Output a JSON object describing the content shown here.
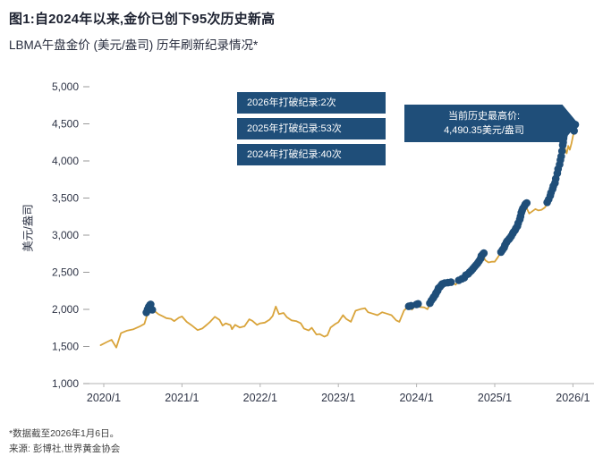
{
  "theme": {
    "navy": "#1F4E79",
    "gold": "#D9A43B"
  },
  "header": {
    "title": "图1:自2024年以来,金价已创下95次历史新高",
    "subtitle": "LBMA午盘金价 (美元/盎司) 历年刷新纪录情况*"
  },
  "legend": {
    "items": [
      {
        "label": "2026年打破纪录:2次"
      },
      {
        "label": "2025年打破纪录:53次"
      },
      {
        "label": "2024年打破纪录:40次"
      }
    ]
  },
  "callout": {
    "line1": "当前历史最高价:",
    "line2": "4,490.35美元/盎司"
  },
  "footer": {
    "note": "*数据截至2026年1月6日。",
    "source": "来源: 彭博社,世界黄金协会"
  },
  "chart_data": {
    "type": "line",
    "title": "LBMA午盘金价 (美元/盎司) 历年刷新纪录情况",
    "ylabel": "美元/盎司",
    "xlabel": "",
    "ylim": [
      1000,
      5000
    ],
    "yticks": [
      5000,
      4500,
      4000,
      3500,
      3000,
      2500,
      2000,
      1500,
      1000
    ],
    "ytick_labels": [
      "5,000",
      "4,500",
      "4,000",
      "3,500",
      "3,000",
      "2,500",
      "2,000",
      "1,500",
      "1,000"
    ],
    "xticks": [
      2020,
      2021,
      2022,
      2023,
      2024,
      2025,
      2026
    ],
    "xtick_labels": [
      "2020/1",
      "2021/1",
      "2022/1",
      "2023/1",
      "2024/1",
      "2025/1",
      "2026/1"
    ],
    "grid": false,
    "legend_position": "upper-center-overlay",
    "record_color": "#1F4E79",
    "current_record_high_usd": "4,490.35",
    "record_counts": {
      "2024": 40,
      "2025": 53,
      "2026": 2,
      "total_since_2024": 95
    },
    "series": [
      {
        "name": "LBMA午盘金价(美元/盎司)",
        "color": "#D9A43B",
        "points": [
          [
            2019.96,
            1517
          ],
          [
            2020.04,
            1560
          ],
          [
            2020.1,
            1590
          ],
          [
            2020.16,
            1485
          ],
          [
            2020.22,
            1680
          ],
          [
            2020.3,
            1715
          ],
          [
            2020.38,
            1732
          ],
          [
            2020.46,
            1770
          ],
          [
            2020.52,
            1805
          ],
          [
            2020.56,
            1945
          ],
          [
            2020.6,
            2063
          ],
          [
            2020.64,
            1985
          ],
          [
            2020.7,
            1935
          ],
          [
            2020.76,
            1905
          ],
          [
            2020.8,
            1882
          ],
          [
            2020.86,
            1872
          ],
          [
            2020.9,
            1842
          ],
          [
            2020.96,
            1888
          ],
          [
            2021.0,
            1905
          ],
          [
            2021.06,
            1833
          ],
          [
            2021.12,
            1788
          ],
          [
            2021.2,
            1720
          ],
          [
            2021.26,
            1742
          ],
          [
            2021.32,
            1795
          ],
          [
            2021.36,
            1832
          ],
          [
            2021.42,
            1900
          ],
          [
            2021.48,
            1858
          ],
          [
            2021.52,
            1782
          ],
          [
            2021.56,
            1812
          ],
          [
            2021.62,
            1788
          ],
          [
            2021.64,
            1732
          ],
          [
            2021.68,
            1792
          ],
          [
            2021.74,
            1755
          ],
          [
            2021.8,
            1772
          ],
          [
            2021.86,
            1866
          ],
          [
            2021.9,
            1846
          ],
          [
            2021.96,
            1792
          ],
          [
            2022.0,
            1812
          ],
          [
            2022.06,
            1822
          ],
          [
            2022.12,
            1862
          ],
          [
            2022.16,
            1912
          ],
          [
            2022.2,
            2039
          ],
          [
            2022.24,
            1936
          ],
          [
            2022.3,
            1952
          ],
          [
            2022.34,
            1896
          ],
          [
            2022.4,
            1852
          ],
          [
            2022.46,
            1842
          ],
          [
            2022.52,
            1812
          ],
          [
            2022.56,
            1742
          ],
          [
            2022.62,
            1716
          ],
          [
            2022.66,
            1752
          ],
          [
            2022.72,
            1662
          ],
          [
            2022.76,
            1668
          ],
          [
            2022.82,
            1632
          ],
          [
            2022.86,
            1652
          ],
          [
            2022.9,
            1756
          ],
          [
            2022.96,
            1802
          ],
          [
            2023.0,
            1826
          ],
          [
            2023.06,
            1922
          ],
          [
            2023.1,
            1872
          ],
          [
            2023.16,
            1832
          ],
          [
            2023.22,
            1982
          ],
          [
            2023.28,
            2002
          ],
          [
            2023.34,
            2016
          ],
          [
            2023.38,
            1962
          ],
          [
            2023.44,
            1942
          ],
          [
            2023.5,
            1922
          ],
          [
            2023.56,
            1962
          ],
          [
            2023.62,
            1942
          ],
          [
            2023.68,
            1922
          ],
          [
            2023.74,
            1852
          ],
          [
            2023.78,
            1832
          ],
          [
            2023.84,
            1986
          ],
          [
            2023.9,
            2041
          ],
          [
            2023.94,
            1996
          ],
          [
            2024.0,
            2066
          ],
          [
            2024.04,
            2032
          ],
          [
            2024.1,
            2026
          ],
          [
            2024.14,
            2002
          ],
          [
            2024.18,
            2086
          ],
          [
            2024.22,
            2166
          ],
          [
            2024.26,
            2202
          ],
          [
            2024.3,
            2302
          ],
          [
            2024.34,
            2342
          ],
          [
            2024.4,
            2332
          ],
          [
            2024.46,
            2362
          ],
          [
            2024.5,
            2332
          ],
          [
            2024.54,
            2392
          ],
          [
            2024.6,
            2402
          ],
          [
            2024.64,
            2472
          ],
          [
            2024.7,
            2502
          ],
          [
            2024.74,
            2572
          ],
          [
            2024.8,
            2652
          ],
          [
            2024.84,
            2746
          ],
          [
            2024.88,
            2662
          ],
          [
            2024.92,
            2632
          ],
          [
            2024.96,
            2642
          ],
          [
            2025.0,
            2642
          ],
          [
            2025.04,
            2702
          ],
          [
            2025.08,
            2772
          ],
          [
            2025.12,
            2862
          ],
          [
            2025.16,
            2922
          ],
          [
            2025.2,
            2942
          ],
          [
            2025.24,
            3022
          ],
          [
            2025.28,
            3082
          ],
          [
            2025.32,
            3232
          ],
          [
            2025.34,
            3322
          ],
          [
            2025.36,
            3242
          ],
          [
            2025.4,
            3382
          ],
          [
            2025.44,
            3292
          ],
          [
            2025.48,
            3322
          ],
          [
            2025.52,
            3352
          ],
          [
            2025.56,
            3332
          ],
          [
            2025.6,
            3342
          ],
          [
            2025.64,
            3372
          ],
          [
            2025.68,
            3432
          ],
          [
            2025.72,
            3552
          ],
          [
            2025.76,
            3682
          ],
          [
            2025.8,
            3862
          ],
          [
            2025.84,
            4022
          ],
          [
            2025.86,
            4202
          ],
          [
            2025.88,
            4342
          ],
          [
            2025.9,
            4152
          ],
          [
            2025.92,
            4102
          ],
          [
            2025.94,
            4202
          ],
          [
            2025.96,
            4152
          ],
          [
            2025.98,
            4232
          ],
          [
            2026.0,
            4332
          ],
          [
            2026.02,
            4406
          ],
          [
            2026.03,
            4490
          ]
        ]
      }
    ],
    "records": [
      {
        "label": "2020",
        "points": [
          [
            2020.545,
            1958
          ],
          [
            2020.56,
            1998
          ],
          [
            2020.575,
            2036
          ],
          [
            2020.59,
            2058
          ],
          [
            2020.6,
            2067
          ],
          [
            2020.62,
            1994
          ]
        ]
      },
      {
        "label": "2023",
        "points": [
          [
            2023.9,
            2041
          ],
          [
            2023.93,
            2050
          ]
        ]
      },
      {
        "label": "2024",
        "points": [
          [
            2024.0,
            2068
          ],
          [
            2024.02,
            2075
          ],
          [
            2024.17,
            2083
          ],
          [
            2024.19,
            2120
          ],
          [
            2024.21,
            2150
          ],
          [
            2024.22,
            2166
          ],
          [
            2024.24,
            2196
          ],
          [
            2024.25,
            2222
          ],
          [
            2024.27,
            2252
          ],
          [
            2024.28,
            2286
          ],
          [
            2024.3,
            2304
          ],
          [
            2024.32,
            2330
          ],
          [
            2024.33,
            2342
          ],
          [
            2024.36,
            2356
          ],
          [
            2024.4,
            2360
          ],
          [
            2024.44,
            2366
          ],
          [
            2024.54,
            2392
          ],
          [
            2024.58,
            2412
          ],
          [
            2024.61,
            2426
          ],
          [
            2024.63,
            2462
          ],
          [
            2024.66,
            2478
          ],
          [
            2024.68,
            2502
          ],
          [
            2024.7,
            2522
          ],
          [
            2024.72,
            2546
          ],
          [
            2024.74,
            2572
          ],
          [
            2024.76,
            2596
          ],
          [
            2024.78,
            2622
          ],
          [
            2024.8,
            2652
          ],
          [
            2024.82,
            2686
          ],
          [
            2024.83,
            2722
          ],
          [
            2024.85,
            2746
          ],
          [
            2024.86,
            2758
          ]
        ]
      },
      {
        "label": "2025",
        "points": [
          [
            2025.08,
            2772
          ],
          [
            2025.1,
            2802
          ],
          [
            2025.12,
            2832
          ],
          [
            2025.13,
            2866
          ],
          [
            2025.15,
            2902
          ],
          [
            2025.16,
            2922
          ],
          [
            2025.18,
            2942
          ],
          [
            2025.19,
            2956
          ],
          [
            2025.21,
            2986
          ],
          [
            2025.23,
            3022
          ],
          [
            2025.24,
            3042
          ],
          [
            2025.26,
            3066
          ],
          [
            2025.27,
            3092
          ],
          [
            2025.29,
            3122
          ],
          [
            2025.3,
            3162
          ],
          [
            2025.32,
            3212
          ],
          [
            2025.33,
            3252
          ],
          [
            2025.34,
            3302
          ],
          [
            2025.35,
            3332
          ],
          [
            2025.36,
            3362
          ],
          [
            2025.38,
            3392
          ],
          [
            2025.39,
            3416
          ],
          [
            2025.4,
            3426
          ],
          [
            2025.41,
            3434
          ],
          [
            2025.67,
            3442
          ],
          [
            2025.69,
            3482
          ],
          [
            2025.71,
            3532
          ],
          [
            2025.72,
            3572
          ],
          [
            2025.74,
            3622
          ],
          [
            2025.75,
            3662
          ],
          [
            2025.77,
            3702
          ],
          [
            2025.78,
            3762
          ],
          [
            2025.8,
            3832
          ],
          [
            2025.81,
            3892
          ],
          [
            2025.83,
            3952
          ],
          [
            2025.84,
            4012
          ],
          [
            2025.85,
            4062
          ],
          [
            2025.86,
            4132
          ],
          [
            2025.87,
            4212
          ],
          [
            2025.875,
            4252
          ],
          [
            2025.88,
            4302
          ],
          [
            2025.885,
            4342
          ],
          [
            2025.89,
            4382
          ]
        ]
      },
      {
        "label": "2026",
        "points": [
          [
            2026.015,
            4406
          ],
          [
            2026.03,
            4490
          ]
        ]
      }
    ]
  }
}
